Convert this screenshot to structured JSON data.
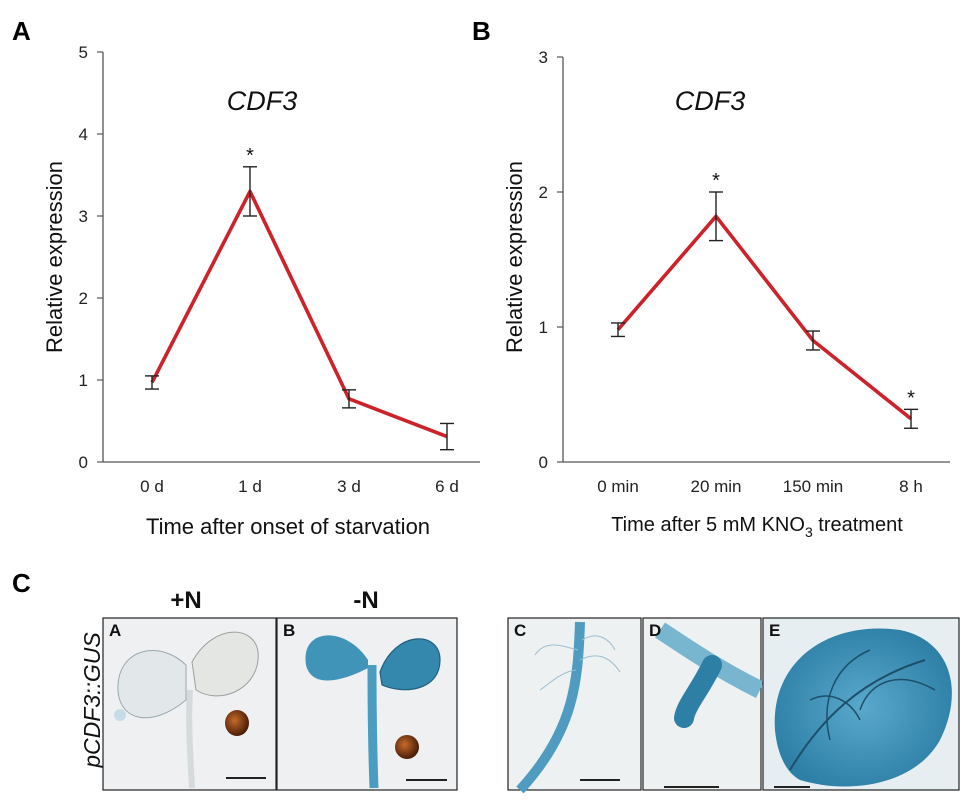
{
  "panel_labels": {
    "a": "A",
    "b": "B",
    "c": "C"
  },
  "colors": {
    "line": "#cc2229",
    "gus_blue": "#3f94b8",
    "seed": "#7a3b12"
  },
  "chart_data": [
    {
      "type": "line",
      "title": "CDF3",
      "xlabel": "Time after onset of starvation",
      "ylabel": "Relative expression",
      "categories": [
        "0 d",
        "1 d",
        "3 d",
        "6 d"
      ],
      "values": [
        0.97,
        3.3,
        0.77,
        0.31
      ],
      "errors": [
        0.08,
        0.3,
        0.11,
        0.16
      ],
      "significant": [
        "",
        "*",
        "",
        ""
      ],
      "ylim": [
        0,
        5
      ],
      "yticks": [
        "0",
        "1",
        "2",
        "3",
        "4",
        "5"
      ]
    },
    {
      "type": "line",
      "title": "CDF3",
      "xlabel_pre": "Time after 5 mM KNO",
      "xlabel_sub": "3",
      "xlabel_post": " treatment",
      "ylabel": "Relative expression",
      "categories": [
        "0 min",
        "20 min",
        "150 min",
        "8 h"
      ],
      "values": [
        0.98,
        1.82,
        0.9,
        0.32
      ],
      "errors": [
        0.05,
        0.18,
        0.07,
        0.07
      ],
      "significant": [
        "",
        "*",
        "",
        "*"
      ],
      "ylim": [
        0,
        3
      ],
      "yticks": [
        "0",
        "1",
        "2",
        "3"
      ]
    }
  ],
  "panel_c": {
    "row_label": "pCDF3::GUS",
    "conditions": {
      "plus": "+N",
      "minus": "-N"
    },
    "photos": [
      "A",
      "B",
      "C",
      "D",
      "E"
    ]
  }
}
